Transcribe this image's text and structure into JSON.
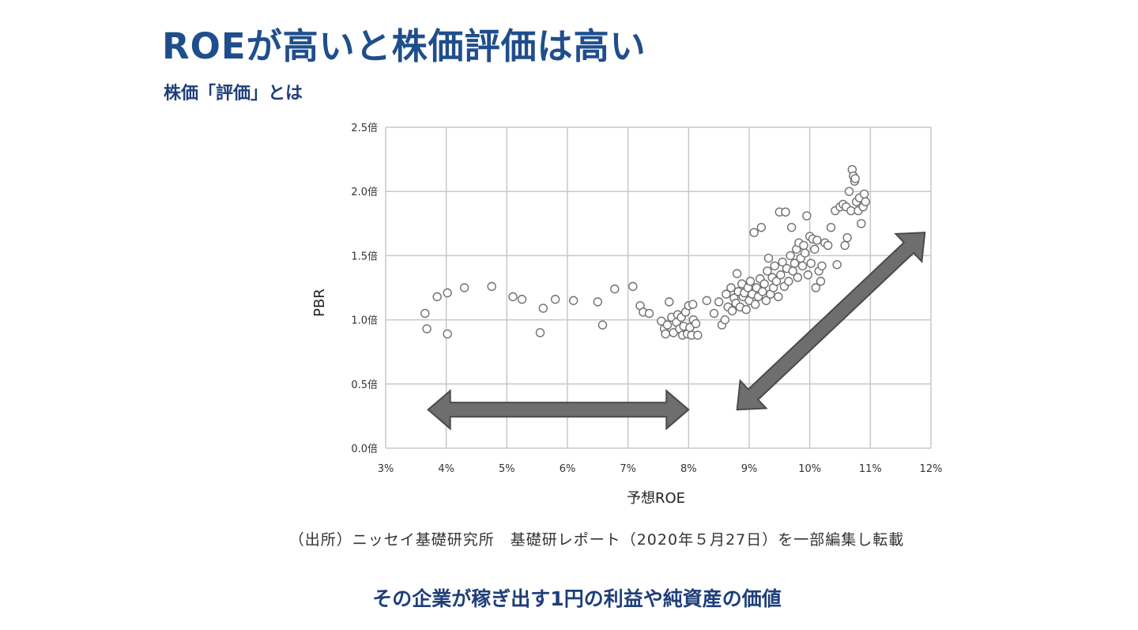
{
  "slide": {
    "title": "ROEが高いと株価評価は高い",
    "subtitle": "株価「評価」とは",
    "source": "（出所）ニッセイ基礎研究所　基礎研レポート（2020年５月27日）を一部編集し転載",
    "caption": "その企業が稼ぎ出す1円の利益や純資産の価値"
  },
  "colors": {
    "title": "#1f4e8c",
    "caption": "#1f3f7a",
    "grid": "#c8c8c8",
    "marker_edge": "#707070",
    "arrow_fill": "#6e6e6e",
    "arrow_edge": "#4a4a4a"
  },
  "chart_data": {
    "type": "scatter",
    "xlabel": "予想ROE",
    "ylabel": "PBR",
    "xlim": [
      3,
      12
    ],
    "ylim": [
      0,
      2.5
    ],
    "x_ticks": [
      "3%",
      "4%",
      "5%",
      "6%",
      "7%",
      "8%",
      "9%",
      "10%",
      "11%",
      "12%"
    ],
    "y_ticks": [
      "0.0倍",
      "0.5倍",
      "1.0倍",
      "1.5倍",
      "2.0倍",
      "2.5倍"
    ],
    "grid": true,
    "marker": "hollow-circle",
    "annotations": [
      {
        "shape": "double-arrow",
        "from": [
          3.7,
          0.3
        ],
        "to": [
          8.0,
          0.3
        ]
      },
      {
        "shape": "double-arrow",
        "from": [
          8.8,
          0.3
        ],
        "to": [
          11.9,
          1.68
        ]
      }
    ],
    "points": [
      [
        3.65,
        1.05
      ],
      [
        3.68,
        0.93
      ],
      [
        3.85,
        1.18
      ],
      [
        4.02,
        1.21
      ],
      [
        4.02,
        0.89
      ],
      [
        4.3,
        1.25
      ],
      [
        4.75,
        1.26
      ],
      [
        5.1,
        1.18
      ],
      [
        5.25,
        1.16
      ],
      [
        5.55,
        0.9
      ],
      [
        5.6,
        1.09
      ],
      [
        5.8,
        1.16
      ],
      [
        6.1,
        1.15
      ],
      [
        6.5,
        1.14
      ],
      [
        6.58,
        0.96
      ],
      [
        6.78,
        1.24
      ],
      [
        7.08,
        1.26
      ],
      [
        7.2,
        1.11
      ],
      [
        7.25,
        1.06
      ],
      [
        7.35,
        1.05
      ],
      [
        7.55,
        0.99
      ],
      [
        7.6,
        0.93
      ],
      [
        7.62,
        0.89
      ],
      [
        7.65,
        0.96
      ],
      [
        7.68,
        1.14
      ],
      [
        7.72,
        1.02
      ],
      [
        7.75,
        0.9
      ],
      [
        7.8,
        0.98
      ],
      [
        7.82,
        1.04
      ],
      [
        7.85,
        0.93
      ],
      [
        7.88,
        1.02
      ],
      [
        7.9,
        0.88
      ],
      [
        7.92,
        0.95
      ],
      [
        7.95,
        1.06
      ],
      [
        7.98,
        0.89
      ],
      [
        8.0,
        1.11
      ],
      [
        8.02,
        0.94
      ],
      [
        8.05,
        0.88
      ],
      [
        8.07,
        1.12
      ],
      [
        8.08,
        1.0
      ],
      [
        8.12,
        0.97
      ],
      [
        8.15,
        0.88
      ],
      [
        8.3,
        1.15
      ],
      [
        8.42,
        1.05
      ],
      [
        8.5,
        1.14
      ],
      [
        8.55,
        0.96
      ],
      [
        8.6,
        1.0
      ],
      [
        8.62,
        1.2
      ],
      [
        8.65,
        1.1
      ],
      [
        8.7,
        1.25
      ],
      [
        8.72,
        1.07
      ],
      [
        8.75,
        1.17
      ],
      [
        8.78,
        1.13
      ],
      [
        8.8,
        1.36
      ],
      [
        8.82,
        1.22
      ],
      [
        8.85,
        1.1
      ],
      [
        8.88,
        1.28
      ],
      [
        8.9,
        1.18
      ],
      [
        8.92,
        1.21
      ],
      [
        8.95,
        1.08
      ],
      [
        8.98,
        1.25
      ],
      [
        9.0,
        1.15
      ],
      [
        9.02,
        1.3
      ],
      [
        9.05,
        1.2
      ],
      [
        9.08,
        1.68
      ],
      [
        9.1,
        1.12
      ],
      [
        9.12,
        1.25
      ],
      [
        9.15,
        1.18
      ],
      [
        9.18,
        1.32
      ],
      [
        9.2,
        1.72
      ],
      [
        9.22,
        1.22
      ],
      [
        9.25,
        1.28
      ],
      [
        9.28,
        1.15
      ],
      [
        9.3,
        1.38
      ],
      [
        9.32,
        1.48
      ],
      [
        9.35,
        1.2
      ],
      [
        9.38,
        1.33
      ],
      [
        9.4,
        1.25
      ],
      [
        9.42,
        1.42
      ],
      [
        9.45,
        1.3
      ],
      [
        9.48,
        1.18
      ],
      [
        9.5,
        1.84
      ],
      [
        9.52,
        1.35
      ],
      [
        9.55,
        1.45
      ],
      [
        9.58,
        1.26
      ],
      [
        9.6,
        1.84
      ],
      [
        9.62,
        1.4
      ],
      [
        9.65,
        1.3
      ],
      [
        9.68,
        1.5
      ],
      [
        9.7,
        1.72
      ],
      [
        9.72,
        1.38
      ],
      [
        9.75,
        1.44
      ],
      [
        9.78,
        1.55
      ],
      [
        9.8,
        1.33
      ],
      [
        9.82,
        1.6
      ],
      [
        9.85,
        1.48
      ],
      [
        9.88,
        1.42
      ],
      [
        9.9,
        1.58
      ],
      [
        9.92,
        1.52
      ],
      [
        9.95,
        1.81
      ],
      [
        9.97,
        1.35
      ],
      [
        10.0,
        1.65
      ],
      [
        10.02,
        1.44
      ],
      [
        10.05,
        1.63
      ],
      [
        10.08,
        1.55
      ],
      [
        10.1,
        1.25
      ],
      [
        10.12,
        1.62
      ],
      [
        10.15,
        1.38
      ],
      [
        10.18,
        1.3
      ],
      [
        10.2,
        1.42
      ],
      [
        10.25,
        1.6
      ],
      [
        10.3,
        1.58
      ],
      [
        10.35,
        1.72
      ],
      [
        10.42,
        1.85
      ],
      [
        10.45,
        1.43
      ],
      [
        10.5,
        1.88
      ],
      [
        10.55,
        1.9
      ],
      [
        10.58,
        1.58
      ],
      [
        10.6,
        1.88
      ],
      [
        10.62,
        1.64
      ],
      [
        10.65,
        2.0
      ],
      [
        10.68,
        1.85
      ],
      [
        10.7,
        2.17
      ],
      [
        10.72,
        2.12
      ],
      [
        10.74,
        2.08
      ],
      [
        10.75,
        2.1
      ],
      [
        10.77,
        1.92
      ],
      [
        10.8,
        1.85
      ],
      [
        10.82,
        1.95
      ],
      [
        10.85,
        1.75
      ],
      [
        10.88,
        1.88
      ],
      [
        10.9,
        1.98
      ],
      [
        10.92,
        1.92
      ]
    ]
  }
}
